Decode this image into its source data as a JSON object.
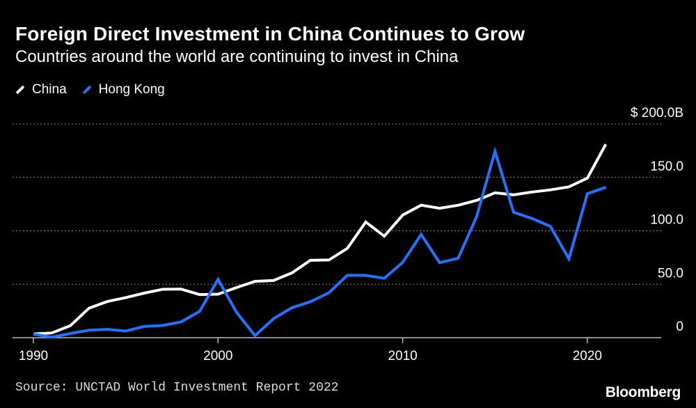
{
  "chart_data": {
    "type": "line",
    "title": "Foreign Direct Investment in China Continues to Grow",
    "subtitle": "Countries around the world are continuing to invest in China",
    "xlabel": "",
    "ylabel": "",
    "x": [
      1990,
      1991,
      1992,
      1993,
      1994,
      1995,
      1996,
      1997,
      1998,
      1999,
      2000,
      2001,
      2002,
      2003,
      2004,
      2005,
      2006,
      2007,
      2008,
      2009,
      2010,
      2011,
      2012,
      2013,
      2014,
      2015,
      2016,
      2017,
      2018,
      2019,
      2020,
      2021
    ],
    "series": [
      {
        "name": "China",
        "color": "#ffffff",
        "values": [
          3.5,
          4.4,
          11.2,
          27.5,
          33.8,
          37.5,
          41.7,
          45.3,
          45.5,
          40.3,
          40.7,
          46.9,
          52.7,
          53.5,
          60.6,
          72.4,
          72.7,
          83.5,
          108.3,
          95.0,
          114.7,
          124.0,
          121.1,
          123.9,
          128.5,
          135.6,
          133.7,
          136.3,
          138.3,
          141.2,
          149.3,
          181.0
        ]
      },
      {
        "name": "Hong Kong",
        "color": "#1e73ff",
        "values": [
          3.3,
          0.5,
          3.9,
          7.0,
          7.8,
          6.2,
          10.5,
          11.4,
          14.8,
          24.6,
          54.6,
          23.8,
          1.9,
          17.7,
          28.0,
          33.6,
          42.0,
          58.4,
          58.3,
          55.5,
          70.5,
          96.6,
          70.2,
          74.3,
          113.0,
          174.4,
          117.4,
          111.5,
          104.2,
          73.8,
          134.7,
          140.7
        ]
      }
    ],
    "xlim": [
      1990,
      2024
    ],
    "ylim": [
      0,
      200
    ],
    "yticks": [
      {
        "value": 200,
        "label": "$ 200.0B"
      },
      {
        "value": 150,
        "label": "150.0"
      },
      {
        "value": 100,
        "label": "100.0"
      },
      {
        "value": 50,
        "label": "50.0"
      },
      {
        "value": 0,
        "label": "0"
      }
    ],
    "xticks": [
      {
        "value": 1990,
        "label": "1990"
      },
      {
        "value": 2000,
        "label": "2000"
      },
      {
        "value": 2010,
        "label": "2010"
      },
      {
        "value": 2020,
        "label": "2020"
      }
    ],
    "grid": true,
    "legend_position": "top-left"
  },
  "footer": {
    "source": "Source: UNCTAD World Investment Report 2022",
    "brand": "Bloomberg"
  }
}
